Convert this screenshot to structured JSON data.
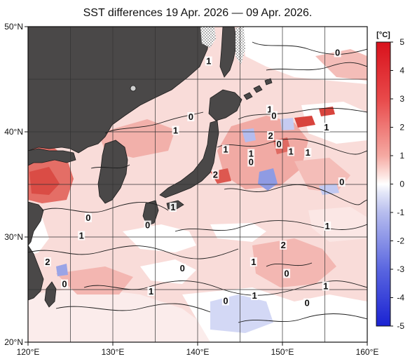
{
  "title": "SST differences 19 Apr. 2026 — 09 Apr. 2026.",
  "map": {
    "type": "sea surface temperature difference map",
    "region": "Western North Pacific around Japan",
    "lat_range": [
      20,
      50
    ],
    "lon_range": [
      120,
      160
    ],
    "x_ticks": [
      {
        "lon": 120,
        "label": "120°E"
      },
      {
        "lon": 130,
        "label": "130°E"
      },
      {
        "lon": 140,
        "label": "140°E"
      },
      {
        "lon": 150,
        "label": "150°E"
      },
      {
        "lon": 160,
        "label": "160°E"
      }
    ],
    "y_ticks": [
      {
        "lat": 50,
        "label": "50°N"
      },
      {
        "lat": 40,
        "label": "40°N"
      },
      {
        "lat": 30,
        "label": "30°N"
      },
      {
        "lat": 20,
        "label": "20°N"
      }
    ],
    "gridlines_lon": [
      125,
      130,
      135,
      140,
      145,
      150,
      155
    ],
    "gridlines_lat": [
      25,
      30,
      35,
      40,
      45
    ],
    "contour_labels": [
      {
        "lon": 141.3,
        "lat": 46.5,
        "text": "1"
      },
      {
        "lon": 156.5,
        "lat": 47.3,
        "text": "0"
      },
      {
        "lon": 148.5,
        "lat": 41.9,
        "text": "1"
      },
      {
        "lon": 149.0,
        "lat": 41.3,
        "text": "0"
      },
      {
        "lon": 139.2,
        "lat": 41.2,
        "text": "0"
      },
      {
        "lon": 137.4,
        "lat": 39.9,
        "text": "1"
      },
      {
        "lon": 155.2,
        "lat": 40.2,
        "text": "1"
      },
      {
        "lon": 148.6,
        "lat": 39.4,
        "text": "2"
      },
      {
        "lon": 149.6,
        "lat": 38.6,
        "text": "0"
      },
      {
        "lon": 151.0,
        "lat": 37.9,
        "text": "1"
      },
      {
        "lon": 153.0,
        "lat": 37.8,
        "text": "1"
      },
      {
        "lon": 143.3,
        "lat": 38.1,
        "text": "1"
      },
      {
        "lon": 146.3,
        "lat": 37.7,
        "text": "1"
      },
      {
        "lon": 146.3,
        "lat": 36.9,
        "text": "0"
      },
      {
        "lon": 142.1,
        "lat": 35.7,
        "text": "2"
      },
      {
        "lon": 157.0,
        "lat": 35.0,
        "text": "0"
      },
      {
        "lon": 137.1,
        "lat": 32.6,
        "text": "1"
      },
      {
        "lon": 127.1,
        "lat": 31.6,
        "text": "0"
      },
      {
        "lon": 134.1,
        "lat": 30.9,
        "text": "0"
      },
      {
        "lon": 155.3,
        "lat": 30.8,
        "text": "1"
      },
      {
        "lon": 126.3,
        "lat": 29.9,
        "text": "1"
      },
      {
        "lon": 150.1,
        "lat": 29.0,
        "text": "2"
      },
      {
        "lon": 122.3,
        "lat": 27.4,
        "text": "2"
      },
      {
        "lon": 146.6,
        "lat": 27.4,
        "text": "1"
      },
      {
        "lon": 138.2,
        "lat": 26.8,
        "text": "0"
      },
      {
        "lon": 150.5,
        "lat": 26.3,
        "text": "0"
      },
      {
        "lon": 124.3,
        "lat": 25.3,
        "text": "0"
      },
      {
        "lon": 155.1,
        "lat": 25.1,
        "text": "1"
      },
      {
        "lon": 134.5,
        "lat": 24.6,
        "text": "1"
      },
      {
        "lon": 146.7,
        "lat": 24.2,
        "text": "1"
      },
      {
        "lon": 143.3,
        "lat": 23.7,
        "text": "0"
      },
      {
        "lon": 152.9,
        "lat": 23.5,
        "text": "0"
      }
    ]
  },
  "colorbar": {
    "unit_label": "[°C]",
    "ticks": [
      "5",
      "4",
      "3",
      "2",
      "1",
      "0",
      "-1",
      "-2",
      "-3",
      "-4",
      "-5"
    ],
    "range": [
      -5,
      5
    ],
    "color_high": "#e0242a",
    "color_zero": "#ffffff",
    "color_low": "#2f3fd8"
  },
  "colors": {
    "land": "#4a4848",
    "ocean_positive_light": "#f6cdca",
    "ocean_positive_medium": "#ec9a95",
    "ocean_positive_strong": "#de5a53",
    "ocean_negative": "#c9cff3",
    "contour": "#1b1b1b",
    "sea_ice_hatch": "#8a8a8a"
  }
}
